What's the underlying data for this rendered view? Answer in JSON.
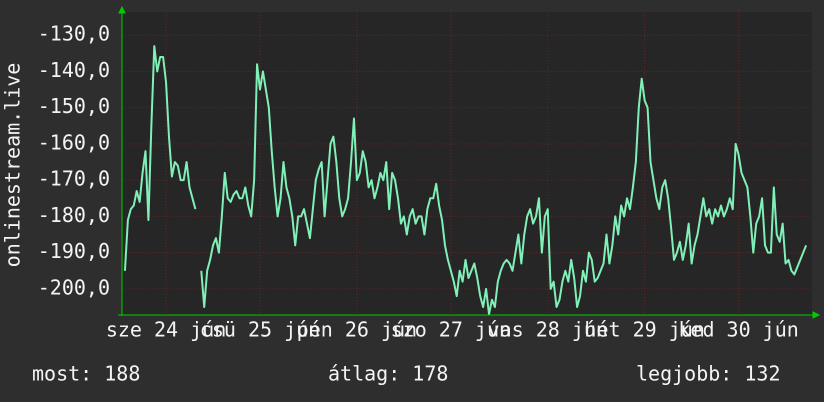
{
  "chart_data": {
    "type": "line",
    "y_label": "onlinestream.live",
    "series": [
      {
        "color": "#80f0b8",
        "values": [
          -195,
          -181,
          -178,
          -177,
          -173,
          -176,
          -168,
          -162,
          -181,
          -155,
          -133,
          -140,
          -136,
          -136,
          -143,
          -158,
          -169,
          -165,
          -166,
          -170,
          -170,
          -165,
          -172,
          -175,
          -178,
          null,
          -195,
          -205,
          -195,
          -192,
          -188,
          -186,
          -190,
          -180,
          -168,
          -175,
          -176,
          -174,
          -173,
          -175,
          -175,
          -172,
          -177,
          -180,
          -170,
          -138,
          -145,
          -140,
          -145,
          -150,
          -162,
          -172,
          -180,
          -175,
          -165,
          -172,
          -175,
          -180,
          -188,
          -180,
          -180,
          -178,
          -182,
          -186,
          -178,
          -170,
          -167,
          -165,
          -180,
          -170,
          -160,
          -158,
          -165,
          -175,
          -180,
          -178,
          -175,
          -165,
          -153,
          -170,
          -168,
          -162,
          -165,
          -172,
          -170,
          -175,
          -172,
          -168,
          -170,
          -165,
          -178,
          -168,
          -170,
          -175,
          -182,
          -180,
          -185,
          -180,
          -178,
          -182,
          -180,
          -180,
          -185,
          -178,
          -175,
          -175,
          -171,
          -177,
          -181,
          -188,
          -192,
          -195,
          -198,
          -202,
          -195,
          -198,
          -192,
          -197,
          -195,
          -193,
          -197,
          -202,
          -205,
          -200,
          -207,
          -203,
          -205,
          -198,
          -195,
          -193,
          -192,
          -193,
          -195,
          -190,
          -185,
          -193,
          -185,
          -180,
          -178,
          -182,
          -180,
          -175,
          -190,
          -180,
          -178,
          -200,
          -198,
          -205,
          -203,
          -198,
          -195,
          -198,
          -192,
          -197,
          -205,
          -202,
          -195,
          -198,
          -190,
          -192,
          -198,
          -197,
          -195,
          -193,
          -185,
          -193,
          -188,
          -180,
          -185,
          -177,
          -180,
          -175,
          -178,
          -172,
          -165,
          -150,
          -142,
          -148,
          -150,
          -165,
          -170,
          -175,
          -178,
          -172,
          -170,
          -175,
          -183,
          -192,
          -190,
          -187,
          -192,
          -188,
          -182,
          -193,
          -188,
          -185,
          -180,
          -175,
          -180,
          -178,
          -182,
          -178,
          -180,
          -177,
          -180,
          -178,
          -175,
          -178,
          -160,
          -163,
          -168,
          -170,
          -172,
          -180,
          -190,
          -182,
          -180,
          -175,
          -188,
          -190,
          -190,
          -172,
          -185,
          -187,
          -182,
          -193,
          -192,
          -195,
          -196,
          -194,
          -192,
          -190,
          -188
        ]
      }
    ],
    "xlim": [
      -1,
      234
    ],
    "xticks": [
      {
        "value": 14,
        "label": "sze 24 jún"
      },
      {
        "value": 46,
        "label": "csü 25 jún"
      },
      {
        "value": 79,
        "label": "pén 26 jún"
      },
      {
        "value": 111,
        "label": "szo 27 jún"
      },
      {
        "value": 144,
        "label": "vas 28 jún"
      },
      {
        "value": 177,
        "label": "hét 29 jún"
      },
      {
        "value": 209,
        "label": "ked 30 jún"
      }
    ],
    "ylim": [
      -207.2,
      -123.6
    ],
    "yticks": [
      {
        "value": -130,
        "label": "-130,0"
      },
      {
        "value": -140,
        "label": "-140,0"
      },
      {
        "value": -150,
        "label": "-150,0"
      },
      {
        "value": -160,
        "label": "-160,0"
      },
      {
        "value": -170,
        "label": "-170,0"
      },
      {
        "value": -180,
        "label": "-180,0"
      },
      {
        "value": -190,
        "label": "-190,0"
      },
      {
        "value": -200,
        "label": "-200,0"
      }
    ],
    "grid": true,
    "footer": [
      "most: 188",
      "átlag: 178",
      "legjobb: 132"
    ]
  }
}
